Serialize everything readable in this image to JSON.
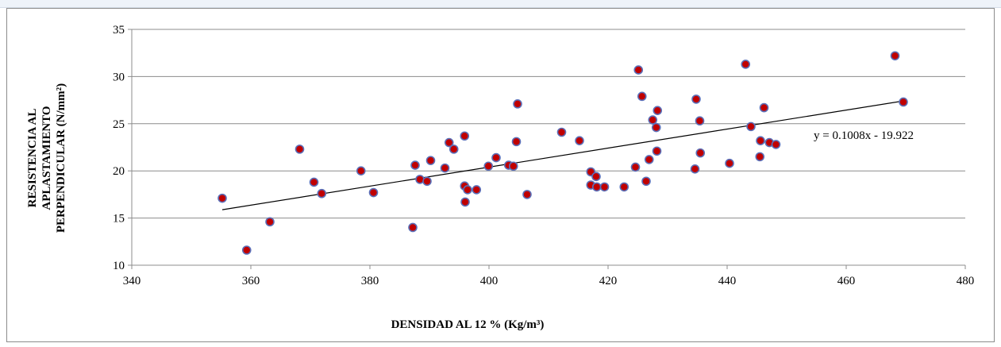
{
  "chart_data": {
    "type": "scatter",
    "title": "",
    "xlabel": "DENSIDAD  AL 12 %  (Kg/m³)",
    "ylabel_lines": [
      "RESISTENCIA  AL",
      "APLASTAMIENTO",
      "PERPENDICULAR  (N/mm²)"
    ],
    "xlim": [
      340,
      480
    ],
    "ylim": [
      10,
      35
    ],
    "xticks": [
      340,
      360,
      380,
      400,
      420,
      440,
      460,
      480
    ],
    "yticks": [
      10,
      15,
      20,
      25,
      30,
      35
    ],
    "grid": "horizontal",
    "point_color": "#c00000",
    "point_edge_color": "#5b6fb8",
    "trendline": {
      "slope": 0.1008,
      "intercept": -19.922,
      "x_range": [
        355.2,
        469.6
      ],
      "equation_label": "y = 0.1008x - 19.922"
    },
    "points": [
      [
        355.2,
        17.1
      ],
      [
        359.3,
        11.6
      ],
      [
        363.2,
        14.6
      ],
      [
        368.2,
        22.3
      ],
      [
        370.6,
        18.8
      ],
      [
        371.9,
        17.6
      ],
      [
        378.5,
        20.0
      ],
      [
        380.6,
        17.7
      ],
      [
        387.2,
        14.0
      ],
      [
        387.6,
        20.6
      ],
      [
        388.4,
        19.1
      ],
      [
        389.6,
        18.9
      ],
      [
        390.2,
        21.1
      ],
      [
        392.6,
        20.3
      ],
      [
        393.3,
        23.0
      ],
      [
        394.1,
        22.3
      ],
      [
        395.9,
        23.7
      ],
      [
        395.9,
        18.4
      ],
      [
        396.0,
        16.7
      ],
      [
        396.4,
        18.0
      ],
      [
        397.9,
        18.0
      ],
      [
        399.9,
        20.5
      ],
      [
        401.2,
        21.4
      ],
      [
        403.3,
        20.6
      ],
      [
        404.1,
        20.5
      ],
      [
        404.6,
        23.1
      ],
      [
        404.8,
        27.1
      ],
      [
        406.4,
        17.5
      ],
      [
        412.2,
        24.1
      ],
      [
        415.2,
        23.2
      ],
      [
        417.1,
        19.9
      ],
      [
        417.1,
        18.5
      ],
      [
        418.0,
        19.4
      ],
      [
        418.1,
        18.3
      ],
      [
        419.4,
        18.3
      ],
      [
        422.7,
        18.3
      ],
      [
        424.6,
        20.4
      ],
      [
        425.1,
        30.7
      ],
      [
        425.7,
        27.9
      ],
      [
        426.4,
        18.9
      ],
      [
        426.9,
        21.2
      ],
      [
        427.5,
        25.4
      ],
      [
        428.1,
        24.6
      ],
      [
        428.2,
        22.1
      ],
      [
        428.3,
        26.4
      ],
      [
        434.6,
        20.2
      ],
      [
        434.8,
        27.6
      ],
      [
        435.4,
        25.3
      ],
      [
        435.5,
        21.9
      ],
      [
        440.4,
        20.8
      ],
      [
        443.1,
        31.3
      ],
      [
        444.0,
        24.7
      ],
      [
        445.5,
        21.5
      ],
      [
        445.6,
        23.2
      ],
      [
        446.2,
        26.7
      ],
      [
        447.1,
        23.0
      ],
      [
        448.2,
        22.8
      ],
      [
        468.2,
        32.2
      ],
      [
        469.6,
        27.3
      ]
    ]
  }
}
